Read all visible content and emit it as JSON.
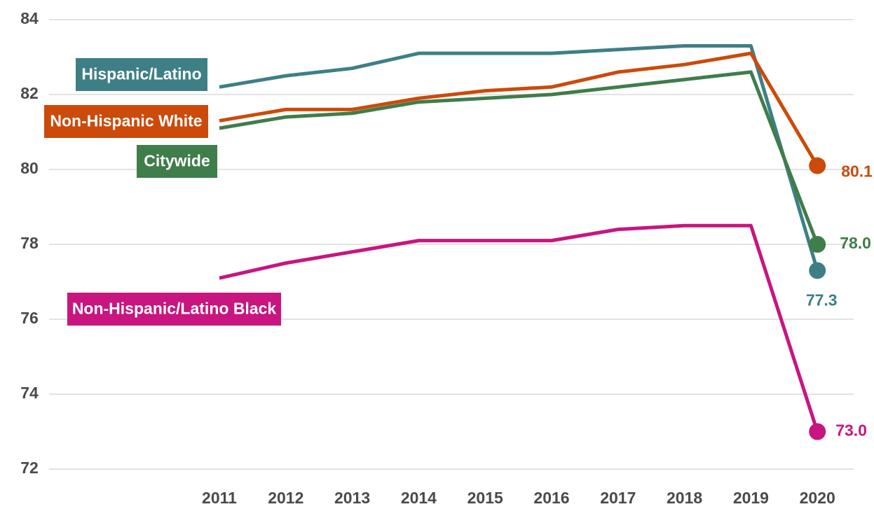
{
  "chart_data": {
    "type": "line",
    "categories": [
      "2011",
      "2012",
      "2013",
      "2014",
      "2015",
      "2016",
      "2017",
      "2018",
      "2019",
      "2020"
    ],
    "series": [
      {
        "name": "Hispanic/Latino",
        "color": "#3e7f86",
        "values": [
          82.2,
          82.5,
          82.7,
          83.1,
          83.1,
          83.1,
          83.2,
          83.3,
          83.3,
          77.3
        ],
        "value_labels": [
          null,
          null,
          null,
          null,
          null,
          null,
          null,
          null,
          null,
          "77.3"
        ]
      },
      {
        "name": "Non-Hispanic White",
        "color": "#cc4a0a",
        "values": [
          81.3,
          81.6,
          81.6,
          81.9,
          82.1,
          82.2,
          82.6,
          82.8,
          83.1,
          80.1
        ],
        "value_labels": [
          null,
          null,
          null,
          null,
          null,
          null,
          null,
          null,
          null,
          "80.1"
        ]
      },
      {
        "name": "Citywide",
        "color": "#3f7d4a",
        "values": [
          81.1,
          81.4,
          81.5,
          81.8,
          81.9,
          82.0,
          82.2,
          82.4,
          82.6,
          78.0
        ],
        "value_labels": [
          null,
          null,
          null,
          null,
          null,
          null,
          null,
          null,
          null,
          "78.0"
        ]
      },
      {
        "name": "Non-Hispanic/Latino Black",
        "color": "#c8157f",
        "values": [
          77.1,
          77.5,
          77.8,
          78.1,
          78.1,
          78.1,
          78.4,
          78.5,
          78.5,
          73.0
        ],
        "value_labels": [
          null,
          null,
          null,
          null,
          null,
          null,
          null,
          null,
          null,
          "73.0"
        ]
      }
    ],
    "ylim": [
      72,
      84
    ],
    "yticks": [
      72,
      74,
      76,
      78,
      80,
      82,
      84
    ],
    "grid": true
  }
}
